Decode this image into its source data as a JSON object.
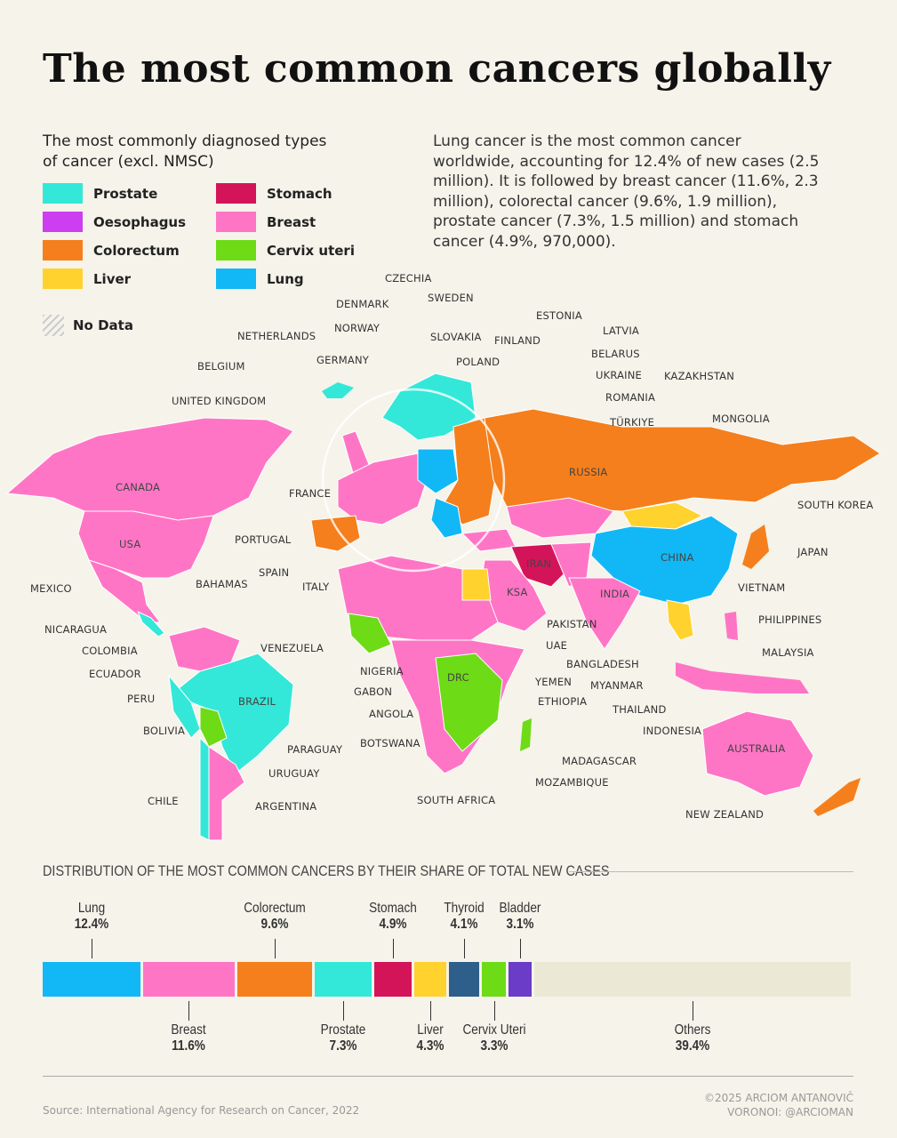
{
  "title": "The most common cancers globally",
  "subtitle": "The most commonly diagnosed types of cancer (excl. NMSC)",
  "intro": "Lung cancer is the most common cancer worldwide, accounting for 12.4% of new cases (2.5 million). It is followed by breast cancer (11.6%, 2.3 million), colorectal cancer (9.6%, 1.9 million), prostate cancer (7.3%, 1.5 million) and stomach cancer (4.9%, 970,000).",
  "legend": [
    {
      "label": "Prostate",
      "color": "#33e8d8"
    },
    {
      "label": "Stomach",
      "color": "#d41459"
    },
    {
      "label": "Oesophagus",
      "color": "#cc3ef0"
    },
    {
      "label": "Breast",
      "color": "#ff75c5"
    },
    {
      "label": "Colorectum",
      "color": "#f57f1c"
    },
    {
      "label": "Cervix uteri",
      "color": "#6ddb16"
    },
    {
      "label": "Liver",
      "color": "#ffd22e"
    },
    {
      "label": "Lung",
      "color": "#12b8f5"
    }
  ],
  "no_data": "No Data",
  "country_labels": [
    "CZECHIA",
    "DENMARK",
    "SWEDEN",
    "NORWAY",
    "ESTONIA",
    "LATVIA",
    "NETHERLANDS",
    "SLOVAKIA",
    "FINLAND",
    "BELARUS",
    "GERMANY",
    "POLAND",
    "BELGIUM",
    "UKRAINE",
    "KAZAKHSTAN",
    "ROMANIA",
    "UNITED KINGDOM",
    "TÜRKIYE",
    "MONGOLIA",
    "RUSSIA",
    "CANADA",
    "FRANCE",
    "SOUTH KOREA",
    "USA",
    "PORTUGAL",
    "SPAIN",
    "IRAN",
    "CHINA",
    "JAPAN",
    "MEXICO",
    "BAHAMAS",
    "ITALY",
    "KSA",
    "INDIA",
    "VIETNAM",
    "PAKISTAN",
    "PHILIPPINES",
    "NICARAGUA",
    "UAE",
    "VENEZUELA",
    "COLOMBIA",
    "MALAYSIA",
    "BANGLADESH",
    "NIGERIA",
    "ECUADOR",
    "DRC",
    "YEMEN",
    "MYANMAR",
    "GABON",
    "PERU",
    "BRAZIL",
    "ETHIOPIA",
    "THAILAND",
    "ANGOLA",
    "BOLIVIA",
    "INDONESIA",
    "BOTSWANA",
    "AUSTRALIA",
    "PARAGUAY",
    "MADAGASCAR",
    "URUGUAY",
    "MOZAMBIQUE",
    "CHILE",
    "SOUTH AFRICA",
    "ARGENTINA",
    "NEW ZEALAND"
  ],
  "chart_data": {
    "type": "bar",
    "title": "DISTRIBUTION OF THE MOST COMMON CANCERS BY THEIR SHARE OF TOTAL NEW CASES",
    "orientation": "stacked-horizontal",
    "categories": [
      "Lung",
      "Breast",
      "Colorectum",
      "Prostate",
      "Stomach",
      "Liver",
      "Thyroid",
      "Cervix Uteri",
      "Bladder",
      "Others"
    ],
    "values": [
      12.4,
      11.6,
      9.6,
      7.3,
      4.9,
      4.3,
      4.1,
      3.3,
      3.1,
      39.4
    ],
    "labels": [
      "12.4%",
      "11.6%",
      "9.6%",
      "7.3%",
      "4.9%",
      "4.3%",
      "4.1%",
      "3.3%",
      "3.1%",
      "39.4%"
    ],
    "colors": [
      "#12b8f5",
      "#ff75c5",
      "#f57f1c",
      "#33e8d8",
      "#d41459",
      "#ffd22e",
      "#2e5f8a",
      "#6ddb16",
      "#6a3cc8",
      "#ebe9d6"
    ],
    "label_side": [
      "top",
      "bottom",
      "top",
      "bottom",
      "top",
      "bottom",
      "top",
      "bottom",
      "top",
      "bottom"
    ]
  },
  "footer": {
    "source": "Source: International Agency for Research on Cancer, 2022",
    "credit1": "©2025 ARCIOM ANTANOVIČ",
    "credit2": "VORONOI: @ARCIOMAN"
  }
}
